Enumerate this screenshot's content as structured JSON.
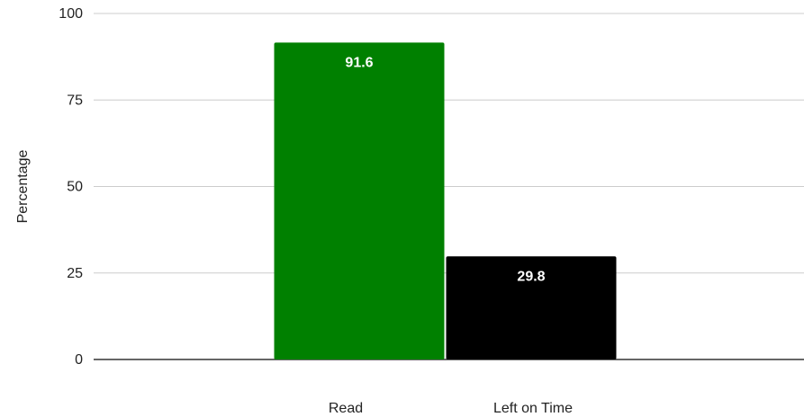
{
  "chart_data": {
    "type": "bar",
    "title": "",
    "xlabel": "",
    "ylabel": "Percentage",
    "ylim": [
      0,
      100
    ],
    "yticks": [
      0,
      25,
      50,
      75,
      100
    ],
    "grid": true,
    "legend": "none",
    "series": [
      {
        "label": "Read",
        "value": 91.6,
        "color": "#008000",
        "data_label": "91.6"
      },
      {
        "label": "Left on Time",
        "value": 29.8,
        "color": "#000000",
        "data_label": "29.8"
      }
    ]
  }
}
